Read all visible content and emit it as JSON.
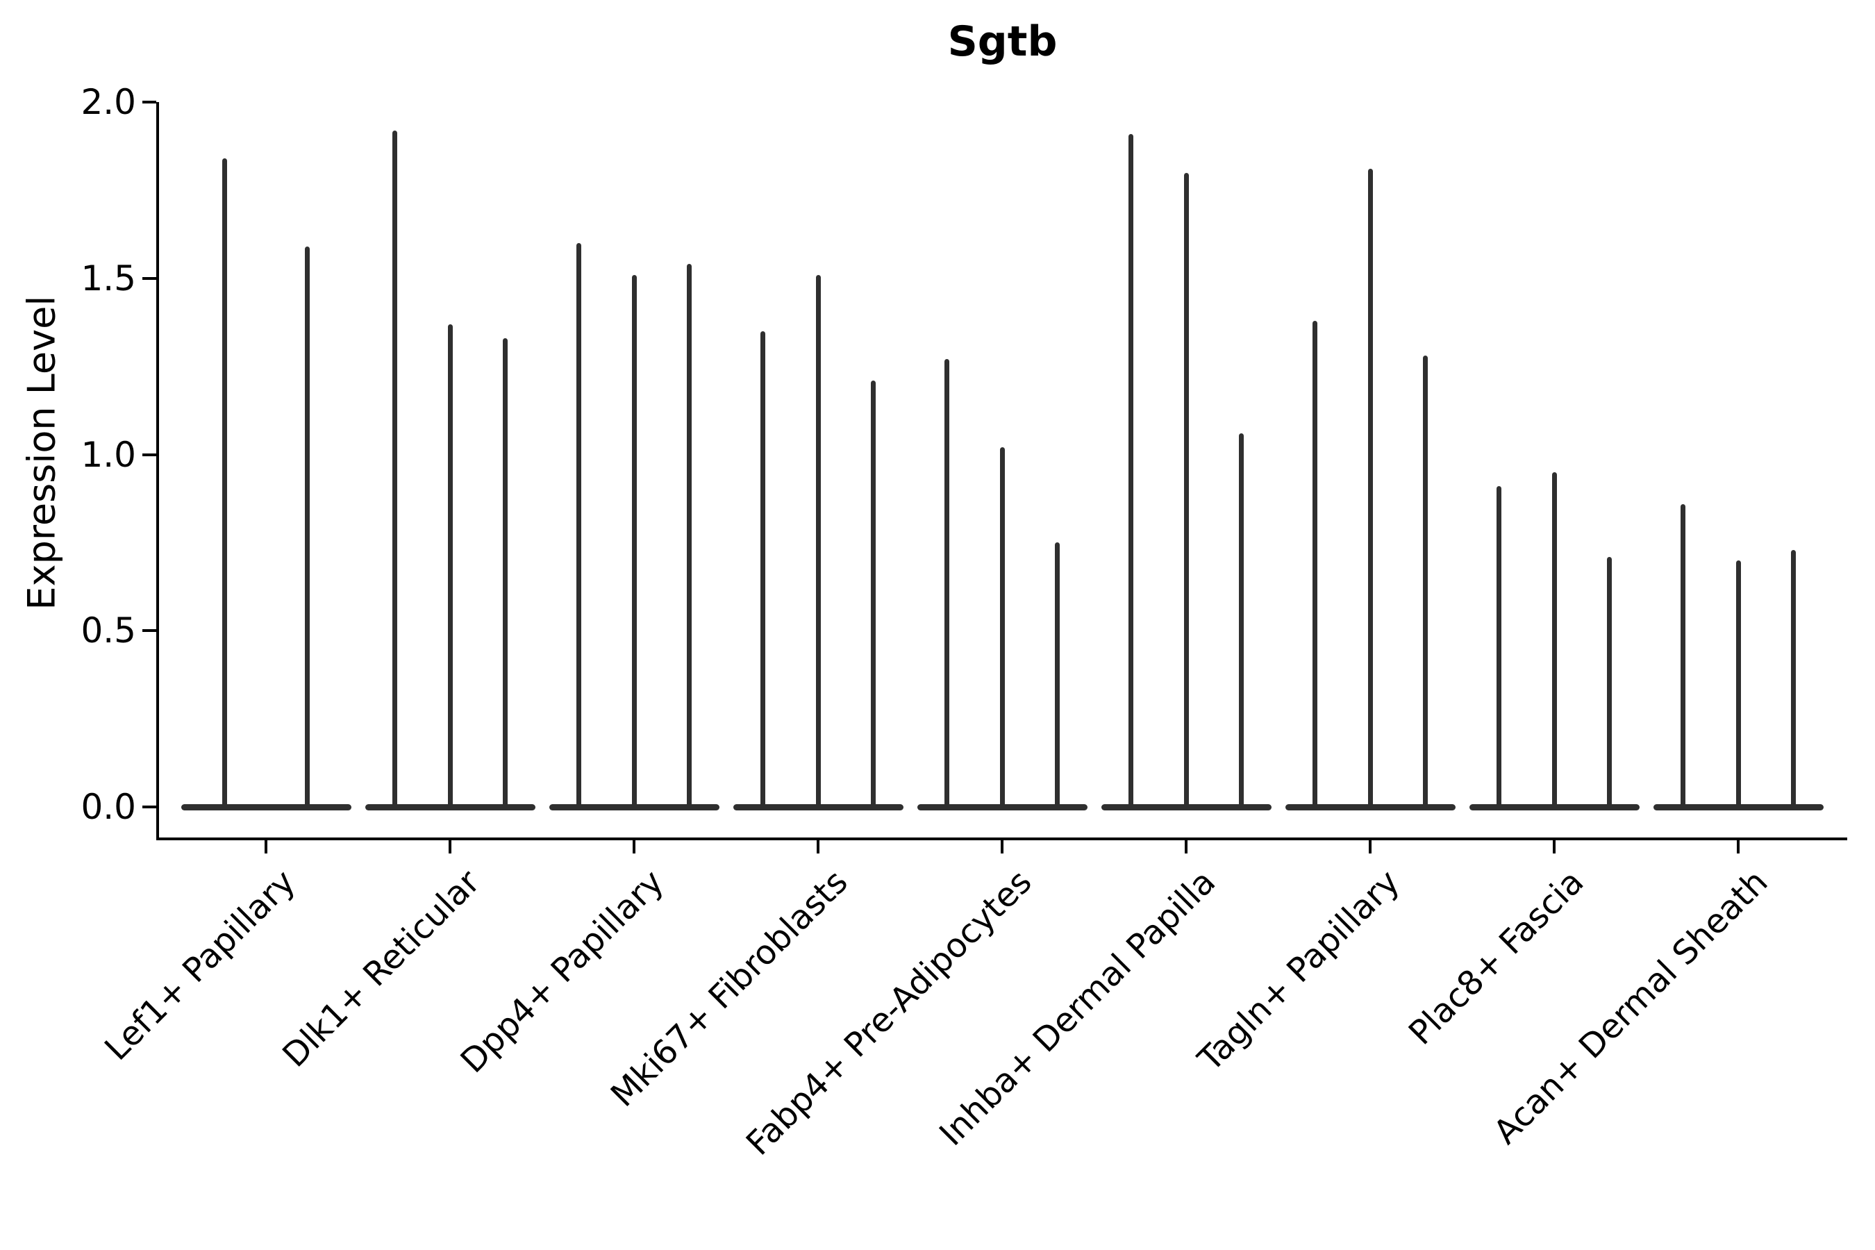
{
  "title": "Sgtb",
  "y_axis": {
    "label": "Expression Level",
    "tick_labels": [
      "2.0",
      "1.5",
      "1.0",
      "0.5",
      "0.0"
    ],
    "tick_values": [
      2.0,
      1.5,
      1.0,
      0.5,
      0.0
    ]
  },
  "colors": {
    "violin": "#2f2f2f",
    "axis": "#000000",
    "background": "#ffffff"
  },
  "chart_data": {
    "type": "violin",
    "title": "Sgtb",
    "xlabel": "",
    "ylabel": "Expression Level",
    "ylim": [
      0.0,
      2.0
    ],
    "grid": false,
    "legend": "none",
    "description": "Grouped expression-level violin plot; each cell-type group contains 2-3 very thin violins whose mass is concentrated at 0 (flat base) with a thin spike up to the max expression value.",
    "groups": [
      {
        "label": "Lef1+ Papillary",
        "violin_max": [
          1.84,
          1.59
        ]
      },
      {
        "label": "Dlk1+ Reticular",
        "violin_max": [
          1.92,
          1.37,
          1.33
        ]
      },
      {
        "label": "Dpp4+ Papillary",
        "violin_max": [
          1.6,
          1.51,
          1.54
        ]
      },
      {
        "label": "Mki67+ Fibroblasts",
        "violin_max": [
          1.35,
          1.51,
          1.21
        ]
      },
      {
        "label": "Fabp4+ Pre-Adipocytes",
        "violin_max": [
          1.27,
          1.02,
          0.75
        ]
      },
      {
        "label": "Inhba+ Dermal Papilla",
        "violin_max": [
          1.91,
          1.8,
          1.06
        ]
      },
      {
        "label": "Tagln+ Papillary",
        "violin_max": [
          1.38,
          1.81,
          1.28
        ]
      },
      {
        "label": "Plac8+ Fascia",
        "violin_max": [
          0.91,
          0.95,
          0.71
        ]
      },
      {
        "label": "Acan+ Dermal Sheath",
        "violin_max": [
          0.86,
          0.7,
          0.73
        ]
      }
    ]
  }
}
